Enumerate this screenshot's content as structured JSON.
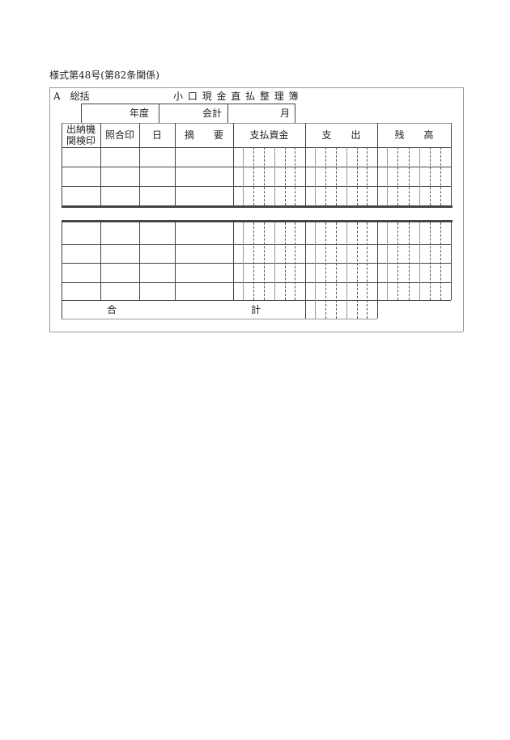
{
  "form_number": "様式第48号(第82条関係)",
  "section_label": "A　総括",
  "title": "小 口 現 金 直 払 整 理 簿",
  "period_row": {
    "fiscal_year": "年度",
    "account": "会計",
    "month": "月"
  },
  "headers": [
    "出納機\n関検印",
    "照合印",
    "日",
    "摘　　要",
    "支払資金",
    "支　　出",
    "残　　高"
  ],
  "total_label_left": "合",
  "total_label_right": "計"
}
